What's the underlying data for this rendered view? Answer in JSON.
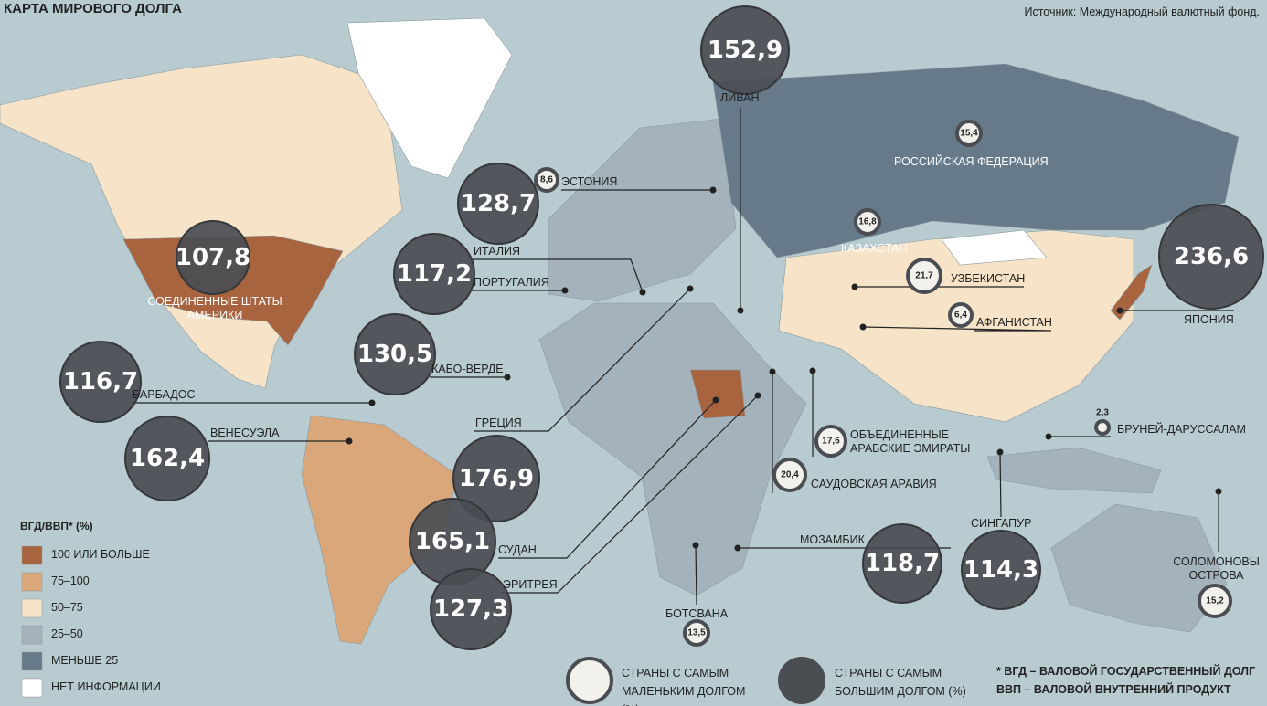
{
  "title": "КАРТА МИРОВОГО ДОЛГА",
  "source": "Источник: Международный валютный фонд.",
  "legend": {
    "title": "ВГД/ВВП* (%)",
    "items": [
      {
        "label": "100 ИЛИ БОЛЬШЕ",
        "color": "#a8643f"
      },
      {
        "label": "75–100",
        "color": "#d9a77a"
      },
      {
        "label": "50–75",
        "color": "#f6e3c8"
      },
      {
        "label": "25–50",
        "color": "#a3b2bb"
      },
      {
        "label": "МЕНЬШЕ 25",
        "color": "#667a8a"
      },
      {
        "label": "НЕТ ИНФОРМАЦИИ",
        "color": "#ffffff"
      }
    ]
  },
  "high_debt": [
    {
      "country": "ЛИВАН",
      "value": "152,9"
    },
    {
      "country": "СОЕДИНЕННЫЕ ШТАТЫ АМЕРИКИ",
      "value": "107,8"
    },
    {
      "country": "ИТАЛИЯ",
      "value": "128,7"
    },
    {
      "country": "ПОРТУГАЛИЯ",
      "value": "117,2"
    },
    {
      "country": "КАБО-ВЕРДЕ",
      "value": "130,5"
    },
    {
      "country": "БАРБАДОС",
      "value": "116,7"
    },
    {
      "country": "ВЕНЕСУЭЛА",
      "value": "162,4"
    },
    {
      "country": "ГРЕЦИЯ",
      "value": "176,9"
    },
    {
      "country": "СУДАН",
      "value": "165,1"
    },
    {
      "country": "ЭРИТРЕЯ",
      "value": "127,3"
    },
    {
      "country": "ЯПОНИЯ",
      "value": "236,6"
    },
    {
      "country": "МОЗАМБИК",
      "value": "118,7"
    },
    {
      "country": "СИНГАПУР",
      "value": "114,3"
    }
  ],
  "low_debt": [
    {
      "country": "ЭСТОНИЯ",
      "value": "8,6"
    },
    {
      "country": "РОССИЙСКАЯ ФЕДЕРАЦИЯ",
      "value": "15,4"
    },
    {
      "country": "КАЗАХСТАН",
      "value": "16,8"
    },
    {
      "country": "УЗБЕКИСТАН",
      "value": "21,7"
    },
    {
      "country": "АФГАНИСТАН",
      "value": "6,4"
    },
    {
      "country": "ОБЪЕДИНЕННЫЕ АРАБСКИЕ ЭМИРАТЫ",
      "value": "17,6"
    },
    {
      "country": "САУДОВСКАЯ АРАВИЯ",
      "value": "20,4"
    },
    {
      "country": "БРУНЕЙ-ДАРУССАЛАМ",
      "value": "2,3"
    },
    {
      "country": "СОЛОМОНОВЫ ОСТРОВА",
      "value": "15,2"
    },
    {
      "country": "БОТСВАНА",
      "value": "13,5"
    }
  ],
  "circle_legend": {
    "low": "СТРАНЫ С САМЫМ МАЛЕНЬКИМ ДОЛГОМ (%)",
    "high": "СТРАНЫ С САМЫМ БОЛЬШИМ ДОЛГОМ (%)"
  },
  "footnotes": [
    "* ВГД – ВАЛОВОЙ ГОСУДАРСТВЕННЫЙ ДОЛГ",
    "ВВП – ВАЛОВОЙ ВНУТРЕННИЙ ПРОДУКТ"
  ]
}
